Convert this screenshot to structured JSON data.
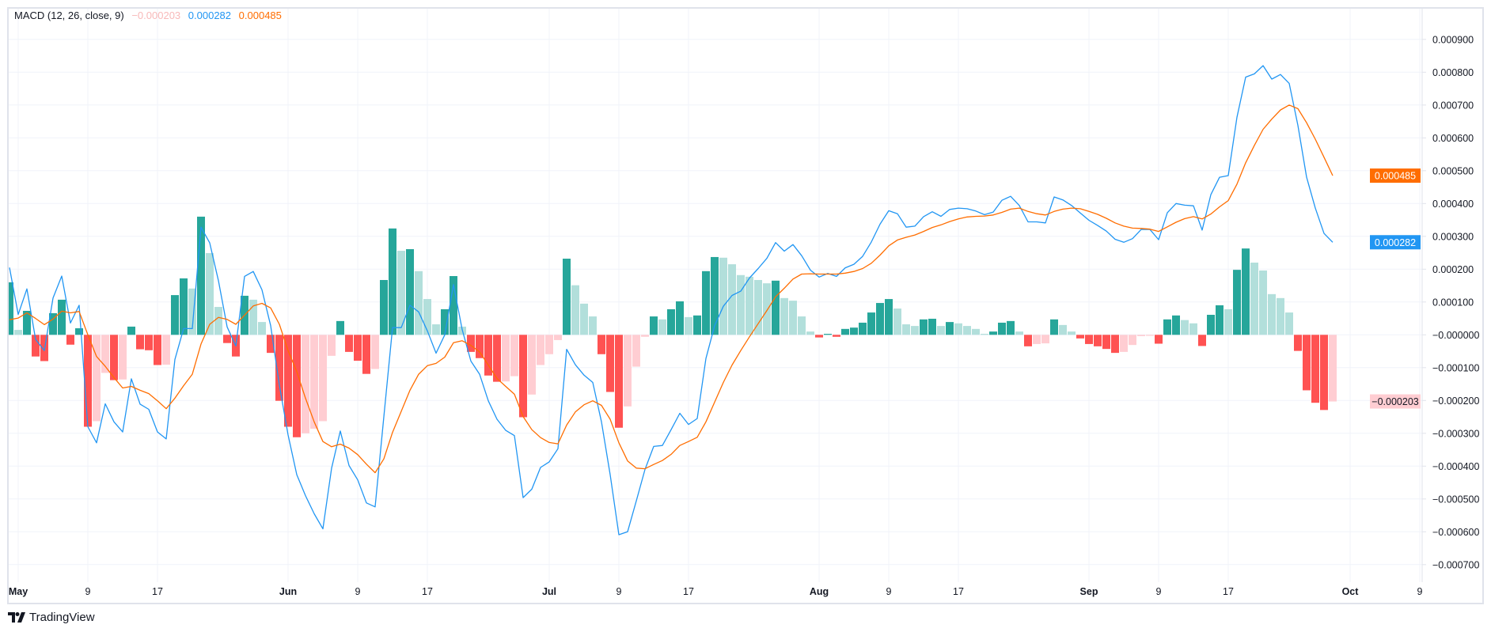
{
  "legend": {
    "title": "MACD (12, 26, close, 9)",
    "histogram_value": "−0.000203",
    "macd_value": "0.000282",
    "signal_value": "0.000485"
  },
  "brand": {
    "name": "TradingView",
    "icon": "tradingview-logo-icon"
  },
  "colors": {
    "macd": "#2196F3",
    "signal": "#FF6D00",
    "hist_pos_rising": "#26A69A",
    "hist_pos_falling": "#B2DFDB",
    "hist_neg_rising": "#FFCDD2",
    "hist_neg_falling": "#FF5252",
    "grid": "#f0f3fa"
  },
  "chart_data": {
    "type": "line+bar",
    "title": "MACD (12, 26, close, 9)",
    "grid": true,
    "ylim": [
      -0.00075,
      0.00093
    ],
    "y_ticks": [
      {
        "value": 0.0009,
        "label": "0.000900"
      },
      {
        "value": 0.0008,
        "label": "0.000800"
      },
      {
        "value": 0.0007,
        "label": "0.000700"
      },
      {
        "value": 0.0006,
        "label": "0.000600"
      },
      {
        "value": 0.0005,
        "label": "0.000500"
      },
      {
        "value": 0.0004,
        "label": "0.000400"
      },
      {
        "value": 0.0003,
        "label": "0.000300"
      },
      {
        "value": 0.0002,
        "label": "0.000200"
      },
      {
        "value": 0.0001,
        "label": "0.000100"
      },
      {
        "value": 0,
        "label": "−0.000000"
      },
      {
        "value": -0.0001,
        "label": "−0.000100"
      },
      {
        "value": -0.0002,
        "label": "−0.000200"
      },
      {
        "value": -0.0003,
        "label": "−0.000300"
      },
      {
        "value": -0.0004,
        "label": "−0.000400"
      },
      {
        "value": -0.0005,
        "label": "−0.000500"
      },
      {
        "value": -0.0006,
        "label": "−0.000600"
      },
      {
        "value": -0.0007,
        "label": "−0.000700"
      }
    ],
    "x_ticks": [
      {
        "date": "05-01",
        "label": "May"
      },
      {
        "date": "05-09",
        "label": "9"
      },
      {
        "date": "05-17",
        "label": "17"
      },
      {
        "date": "06-01",
        "label": "Jun"
      },
      {
        "date": "06-09",
        "label": "9"
      },
      {
        "date": "06-17",
        "label": "17"
      },
      {
        "date": "07-01",
        "label": "Jul"
      },
      {
        "date": "07-09",
        "label": "9"
      },
      {
        "date": "07-17",
        "label": "17"
      },
      {
        "date": "08-01",
        "label": "Aug"
      },
      {
        "date": "08-09",
        "label": "9"
      },
      {
        "date": "08-17",
        "label": "17"
      },
      {
        "date": "09-01",
        "label": "Sep"
      },
      {
        "date": "09-09",
        "label": "9"
      },
      {
        "date": "09-17",
        "label": "17"
      },
      {
        "date": "10-01",
        "label": "Oct"
      },
      {
        "date": "10-09",
        "label": "9"
      }
    ],
    "price_badges": [
      {
        "series": "signal",
        "value": 0.000485,
        "label": "0.000485"
      },
      {
        "series": "macd",
        "value": 0.000282,
        "label": "0.000282"
      },
      {
        "series": "histogram",
        "value": -0.000203,
        "label": "−0.000203"
      }
    ],
    "x": [
      "04-30",
      "05-01",
      "05-02",
      "05-03",
      "05-04",
      "05-05",
      "05-06",
      "05-07",
      "05-08",
      "05-09",
      "05-10",
      "05-11",
      "05-12",
      "05-13",
      "05-14",
      "05-15",
      "05-16",
      "05-17",
      "05-18",
      "05-19",
      "05-20",
      "05-21",
      "05-22",
      "05-23",
      "05-24",
      "05-25",
      "05-26",
      "05-27",
      "05-28",
      "05-29",
      "05-30",
      "05-31",
      "06-01",
      "06-02",
      "06-03",
      "06-04",
      "06-05",
      "06-06",
      "06-07",
      "06-08",
      "06-09",
      "06-10",
      "06-11",
      "06-12",
      "06-13",
      "06-14",
      "06-15",
      "06-16",
      "06-17",
      "06-18",
      "06-19",
      "06-20",
      "06-21",
      "06-22",
      "06-23",
      "06-24",
      "06-25",
      "06-26",
      "06-27",
      "06-28",
      "06-29",
      "06-30",
      "07-01",
      "07-02",
      "07-03",
      "07-04",
      "07-05",
      "07-06",
      "07-07",
      "07-08",
      "07-09",
      "07-10",
      "07-11",
      "07-12",
      "07-13",
      "07-14",
      "07-15",
      "07-16",
      "07-17",
      "07-18",
      "07-19",
      "07-20",
      "07-21",
      "07-22",
      "07-23",
      "07-24",
      "07-25",
      "07-26",
      "07-27",
      "07-28",
      "07-29",
      "07-30",
      "07-31",
      "08-01",
      "08-02",
      "08-03",
      "08-04",
      "08-05",
      "08-06",
      "08-07",
      "08-08",
      "08-09",
      "08-10",
      "08-11",
      "08-12",
      "08-13",
      "08-14",
      "08-15",
      "08-16",
      "08-17",
      "08-18",
      "08-19",
      "08-20",
      "08-21",
      "08-22",
      "08-23",
      "08-24",
      "08-25",
      "08-26",
      "08-27",
      "08-28",
      "08-29",
      "08-30",
      "08-31",
      "09-01",
      "09-02",
      "09-03",
      "09-04",
      "09-05",
      "09-06",
      "09-07",
      "09-08",
      "09-09",
      "09-10",
      "09-11",
      "09-12",
      "09-13",
      "09-14",
      "09-15",
      "09-16",
      "09-17",
      "09-18",
      "09-19",
      "09-20",
      "09-21",
      "09-22",
      "09-23",
      "09-24",
      "09-25",
      "09-26",
      "09-27",
      "09-28",
      "09-29"
    ],
    "series": [
      {
        "key": "macd",
        "type": "line",
        "values": [
          0.000205,
          6.2e-05,
          0.00014,
          -1.4e-05,
          -4.8e-05,
          0.000112,
          0.000179,
          3.6e-05,
          9e-05,
          -0.00028,
          -0.000329,
          -0.00021,
          -0.000265,
          -0.000296,
          -0.000134,
          -0.000211,
          -0.000227,
          -0.000296,
          -0.000317,
          -7.5e-05,
          1.9e-05,
          1.9e-05,
          0.000328,
          0.00028,
          0.000165,
          2.4e-05,
          -3.4e-05,
          0.000178,
          0.000193,
          0.000137,
          2.8e-05,
          -0.000153,
          -0.000305,
          -0.000426,
          -0.00049,
          -0.000545,
          -0.000591,
          -0.000406,
          -0.000293,
          -0.000398,
          -0.000442,
          -0.000512,
          -0.000524,
          -0.00025,
          2.2e-05,
          2.2e-05,
          9e-05,
          7e-05,
          1.2e-05,
          -5.6e-05,
          0.0,
          0.000153,
          1.6e-05,
          -8e-05,
          -0.00012,
          -0.000201,
          -0.000257,
          -0.000291,
          -0.000307,
          -0.000496,
          -0.00047,
          -0.000404,
          -0.000387,
          -0.000347,
          -4.4e-05,
          -9.1e-05,
          -0.000123,
          -0.000145,
          -0.000265,
          -0.000426,
          -0.000609,
          -0.0006,
          -0.000506,
          -0.00041,
          -0.00034,
          -0.000337,
          -0.000289,
          -0.000239,
          -0.000273,
          -0.000255,
          -7.2e-05,
          2.8e-05,
          8.7e-05,
          0.00012,
          0.000133,
          0.000173,
          0.000202,
          0.000233,
          0.000281,
          0.000255,
          0.000275,
          0.000241,
          0.000197,
          0.000176,
          0.000187,
          0.000178,
          0.000204,
          0.000215,
          0.000239,
          0.000283,
          0.000337,
          0.000378,
          0.000369,
          0.000328,
          0.000331,
          0.00036,
          0.000375,
          0.000361,
          0.000382,
          0.000386,
          0.000384,
          0.000377,
          0.000366,
          0.000374,
          0.00041,
          0.000422,
          0.000394,
          0.000344,
          0.000344,
          0.000341,
          0.00042,
          0.000411,
          0.000394,
          0.000371,
          0.000349,
          0.000333,
          0.000316,
          0.000291,
          0.000282,
          0.000293,
          0.000321,
          0.000321,
          0.00029,
          0.000372,
          0.0004,
          0.000395,
          0.000393,
          0.000319,
          0.000427,
          0.00048,
          0.000485,
          0.000663,
          0.000785,
          0.000795,
          0.00082,
          0.000779,
          0.000793,
          0.000766,
          0.000638,
          0.00048,
          0.000386,
          0.000309,
          0.000282
        ]
      },
      {
        "key": "signal",
        "type": "line",
        "values": [
          4.6e-05,
          5.1e-05,
          6.7e-05,
          5e-05,
          3.1e-05,
          4.8e-05,
          7.2e-05,
          6.7e-05,
          7.1e-05,
          0.0,
          -6.6e-05,
          -9.6e-05,
          -0.00013,
          -0.000162,
          -0.000157,
          -0.000169,
          -0.000179,
          -0.000201,
          -0.000225,
          -0.000193,
          -0.000155,
          -0.00012,
          -2.8e-05,
          3.2e-05,
          5.3e-05,
          4.7e-05,
          3.2e-05,
          6e-05,
          8.8e-05,
          9.6e-05,
          8.2e-05,
          3.2e-05,
          -4.8e-05,
          -0.000112,
          -0.000193,
          -0.000265,
          -0.000325,
          -0.000341,
          -0.000333,
          -0.000345,
          -0.000365,
          -0.000394,
          -0.00042,
          -0.000378,
          -0.000297,
          -0.000233,
          -0.000169,
          -0.00012,
          -9.4e-05,
          -8.7e-05,
          -6.8e-05,
          -2.4e-05,
          -1.8e-05,
          -3.2e-05,
          -5.2e-05,
          -9.2e-05,
          -0.000133,
          -0.000157,
          -0.000181,
          -0.000249,
          -0.000289,
          -0.000313,
          -0.000328,
          -0.000332,
          -0.000275,
          -0.000235,
          -0.000213,
          -0.000201,
          -0.000215,
          -0.000257,
          -0.000329,
          -0.000384,
          -0.000406,
          -0.000408,
          -0.000395,
          -0.000383,
          -0.000364,
          -0.000337,
          -0.000325,
          -0.000312,
          -0.000265,
          -0.000205,
          -0.000145,
          -9.2e-05,
          -4.8e-05,
          -6e-06,
          3.4e-05,
          7.4e-05,
          0.000116,
          0.000142,
          0.00017,
          0.000185,
          0.000186,
          0.000185,
          0.000185,
          0.000185,
          0.000188,
          0.000193,
          0.000202,
          0.000218,
          0.000243,
          0.000271,
          0.000289,
          0.000297,
          0.000304,
          0.000315,
          0.000327,
          0.000335,
          0.000345,
          0.000353,
          0.000359,
          0.000361,
          0.000362,
          0.000365,
          0.000373,
          0.000383,
          0.000386,
          0.000376,
          0.000369,
          0.000365,
          0.000376,
          0.000383,
          0.000386,
          0.000384,
          0.000376,
          0.000367,
          0.000355,
          0.000341,
          0.000331,
          0.000325,
          0.000324,
          0.000322,
          0.000315,
          0.000329,
          0.000343,
          0.000354,
          0.00036,
          0.000353,
          0.000368,
          0.00039,
          0.000409,
          0.000459,
          0.000524,
          0.000577,
          0.000626,
          0.000657,
          0.000685,
          0.0007,
          0.000689,
          0.000646,
          0.000596,
          0.000541,
          0.000485
        ]
      },
      {
        "key": "histogram",
        "type": "bar",
        "values": [
          0.00016,
          1.5e-05,
          7.3e-05,
          -6.6e-05,
          -8e-05,
          6.6e-05,
          0.000107,
          -3e-05,
          2e-05,
          -0.00028,
          -0.000263,
          -0.000116,
          -0.000138,
          -0.000136,
          2.5e-05,
          -4.4e-05,
          -4.7e-05,
          -9.2e-05,
          -9.1e-05,
          0.000121,
          0.000172,
          0.000141,
          0.00036,
          0.000249,
          8.5e-05,
          -2.5e-05,
          -6.6e-05,
          0.000119,
          0.000107,
          3.9e-05,
          -5.5e-05,
          -0.000201,
          -0.00028,
          -0.000312,
          -0.0003,
          -0.000286,
          -0.000263,
          -6.4e-05,
          4.2e-05,
          -5.2e-05,
          -7.9e-05,
          -0.000119,
          -0.000104,
          0.000167,
          0.000324,
          0.000256,
          0.000261,
          0.000194,
          0.000109,
          3.2e-05,
          7.8e-05,
          0.000179,
          2.5e-05,
          -5.2e-05,
          -7.1e-05,
          -0.000124,
          -0.000143,
          -0.000142,
          -0.000126,
          -0.000251,
          -0.000182,
          -9.2e-05,
          -5.9e-05,
          -1.6e-05,
          0.000232,
          0.000151,
          9.5e-05,
          5.6e-05,
          -5.9e-05,
          -0.000174,
          -0.000283,
          -0.000218,
          -9.7e-05,
          -6e-06,
          5.6e-05,
          4.7e-05,
          7.8e-05,
          0.000102,
          5.4e-05,
          5.9e-05,
          0.000194,
          0.000237,
          0.000235,
          0.000215,
          0.000182,
          0.000177,
          0.000167,
          0.000157,
          0.000165,
          0.000112,
          0.000104,
          5.6e-05,
          1e-05,
          -8e-06,
          3e-06,
          -6e-06,
          1.8e-05,
          2.2e-05,
          3.7e-05,
          6.8e-05,
          9.7e-05,
          0.000109,
          8e-05,
          3.2e-05,
          2.7e-05,
          4.7e-05,
          4.9e-05,
          2.7e-05,
          3.9e-05,
          3.5e-05,
          2.7e-05,
          1.8e-05,
          3e-06,
          1e-05,
          3.7e-05,
          4.2e-05,
          1e-05,
          -3.5e-05,
          -2.8e-05,
          -2.6e-05,
          4.7e-05,
          3e-05,
          1e-05,
          -1.1e-05,
          -2.8e-05,
          -3.5e-05,
          -4.3e-05,
          -5.5e-05,
          -5.2e-05,
          -3.1e-05,
          -4e-06,
          -3e-06,
          -2.7e-05,
          4.7e-05,
          5.9e-05,
          4.5e-05,
          3.5e-05,
          -3.4e-05,
          6.1e-05,
          9e-05,
          7.8e-05,
          0.000198,
          0.000263,
          0.00022,
          0.000196,
          0.000124,
          0.000112,
          6.8e-05,
          -4.9e-05,
          -0.000169,
          -0.000207,
          -0.000229,
          -0.000203
        ]
      }
    ]
  }
}
